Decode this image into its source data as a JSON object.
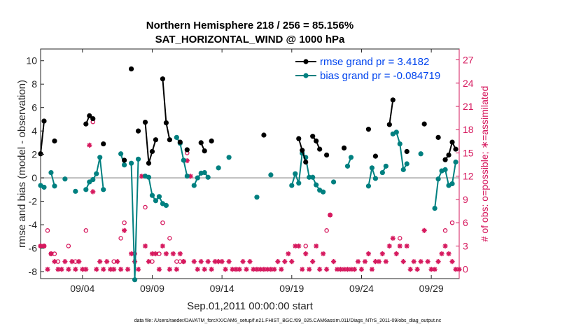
{
  "chart_data": {
    "type": "line",
    "title": "Northern Hemisphere 218 / 256 = 85.156%",
    "subtitle": "SAT_HORIZONTAL_WIND @ 1000 hPa",
    "xlabel": "Sep.01,2011 00:00:00 start",
    "ylabel": "rmse and bias (model - observation)",
    "y2label": "# of obs: o=possible; ∗=assimilated",
    "xlim": [
      0.5,
      30.5
    ],
    "ylim": [
      -8.6,
      11
    ],
    "y2lim": [
      -1.2,
      28.4
    ],
    "x_ticks": [
      3.5,
      8.5,
      13.5,
      18.5,
      23.5,
      28.5
    ],
    "x_tick_labels": [
      "09/04",
      "09/09",
      "09/14",
      "09/19",
      "09/24",
      "09/29"
    ],
    "y_ticks": [
      -8,
      -6,
      -4,
      -2,
      0,
      2,
      4,
      6,
      8,
      10
    ],
    "y_tick_labels": [
      "-8",
      "-6",
      "-4",
      "-2",
      "0",
      "2",
      "4",
      "6",
      "8",
      "10"
    ],
    "y2_ticks": [
      0,
      3,
      6,
      9,
      12,
      15,
      18,
      21,
      24,
      27
    ],
    "y2_tick_labels": [
      "0",
      "3",
      "6",
      "9",
      "12",
      "15",
      "18",
      "21",
      "24",
      "27"
    ],
    "colors": {
      "rmse": "#000000",
      "bias": "#008080",
      "obs": "#d6195e",
      "zero_line": "#bdbdbd",
      "legend_text": "#0044ee"
    },
    "series": [
      {
        "name": "rmse grand pr = 3.4182",
        "color": "#000000",
        "segments": [
          [
            [
              0.5,
              2.05
            ],
            [
              0.75,
              4.85
            ]
          ],
          [
            [
              1.5,
              3.15
            ]
          ],
          [
            [
              3.75,
              4.6
            ],
            [
              4.0,
              5.3
            ],
            [
              4.25,
              5.05
            ]
          ],
          [
            [
              5.0,
              2.9
            ]
          ],
          [
            [
              6.5,
              1.5
            ]
          ],
          [
            [
              7.0,
              9.3
            ]
          ],
          [
            [
              7.5,
              4.0
            ]
          ],
          [
            [
              8.0,
              4.75
            ],
            [
              8.25,
              1.25
            ],
            [
              8.5,
              2.25
            ],
            [
              8.75,
              3.25
            ]
          ],
          [
            [
              9.25,
              8.45
            ],
            [
              9.5,
              4.7
            ],
            [
              9.75,
              3.25
            ]
          ],
          [
            [
              10.5,
              3.05
            ]
          ],
          [
            [
              11.0,
              2.4
            ]
          ],
          [
            [
              12.0,
              3.0
            ],
            [
              12.25,
              2.3
            ]
          ],
          [
            [
              12.75,
              3.15
            ]
          ],
          [
            [
              16.5,
              3.65
            ]
          ],
          [
            [
              19.0,
              3.35
            ],
            [
              19.25,
              2.35
            ],
            [
              19.5,
              1.35
            ]
          ],
          [
            [
              20.0,
              3.55
            ],
            [
              20.25,
              3.15
            ],
            [
              20.5,
              2.45
            ]
          ],
          [
            [
              21.0,
              1.95
            ]
          ],
          [
            [
              22.25,
              2.55
            ]
          ],
          [
            [
              24.0,
              4.15
            ]
          ],
          [
            [
              24.5,
              1.85
            ]
          ],
          [
            [
              25.5,
              4.55
            ],
            [
              25.75,
              6.65
            ]
          ],
          [
            [
              26.75,
              2.25
            ]
          ],
          [
            [
              28.0,
              4.6
            ]
          ],
          [
            [
              29.0,
              3.45
            ]
          ],
          [
            [
              29.5,
              1.55
            ],
            [
              29.75,
              1.95
            ],
            [
              30.0,
              3.05
            ],
            [
              30.25,
              2.45
            ]
          ]
        ]
      },
      {
        "name": "bias grand pr = -0.084719",
        "color": "#008080",
        "segments": [
          [
            [
              0.5,
              -0.65
            ],
            [
              0.75,
              -0.8
            ]
          ],
          [
            [
              1.25,
              0.45
            ],
            [
              1.5,
              -0.7
            ]
          ],
          [
            [
              2.25,
              -0.1
            ]
          ],
          [
            [
              3.0,
              -1.15
            ]
          ],
          [
            [
              3.75,
              -1.0
            ],
            [
              4.0,
              -0.35
            ],
            [
              4.25,
              -0.15
            ],
            [
              4.5,
              0.35
            ],
            [
              4.75,
              1.75
            ],
            [
              5.0,
              -1.0
            ]
          ],
          [
            [
              6.25,
              2.05
            ],
            [
              6.5,
              1.1
            ]
          ],
          [
            [
              7.0,
              1.25
            ],
            [
              7.25,
              -8.7
            ],
            [
              7.5,
              1.6
            ]
          ],
          [
            [
              8.0,
              0.15
            ],
            [
              8.25,
              0.05
            ],
            [
              8.5,
              -1.5
            ],
            [
              8.75,
              -1.95
            ],
            [
              9.0,
              -1.6
            ],
            [
              9.25,
              -2.2
            ],
            [
              9.5,
              -2.35
            ]
          ],
          [
            [
              10.25,
              3.45
            ],
            [
              10.5,
              2.95
            ],
            [
              10.75,
              1.5
            ],
            [
              11.0,
              0.15
            ]
          ],
          [
            [
              11.5,
              -0.65
            ],
            [
              11.75,
              0.0
            ],
            [
              12.0,
              0.4
            ],
            [
              12.25,
              0.45
            ],
            [
              12.5,
              0.05
            ]
          ],
          [
            [
              13.25,
              0.85
            ]
          ],
          [
            [
              14.0,
              1.75
            ]
          ],
          [
            [
              16.0,
              -1.65
            ]
          ],
          [
            [
              17.0,
              0.25
            ]
          ],
          [
            [
              18.5,
              -0.65
            ],
            [
              18.75,
              0.35
            ],
            [
              19.0,
              -0.45
            ],
            [
              19.25,
              2.1
            ],
            [
              19.5,
              1.75
            ],
            [
              19.75,
              0.05
            ],
            [
              20.0,
              0.05
            ],
            [
              20.25,
              -0.6
            ],
            [
              20.5,
              -1.05
            ],
            [
              20.75,
              -1.2
            ]
          ],
          [
            [
              21.5,
              -0.35
            ]
          ],
          [
            [
              22.5,
              1.0
            ],
            [
              22.75,
              1.75
            ]
          ],
          [
            [
              24.0,
              -0.7
            ],
            [
              24.25,
              0.85
            ],
            [
              24.5,
              -0.05
            ]
          ],
          [
            [
              25.0,
              0.45
            ],
            [
              25.25,
              1.0
            ]
          ],
          [
            [
              25.75,
              3.75
            ],
            [
              26.0,
              3.9
            ],
            [
              26.25,
              2.9
            ],
            [
              26.5,
              0.7
            ],
            [
              26.75,
              1.2
            ]
          ],
          [
            [
              27.75,
              2.05
            ]
          ],
          [
            [
              28.75,
              -2.6
            ],
            [
              29.0,
              -0.1
            ],
            [
              29.25,
              0.6
            ],
            [
              29.5,
              0.7
            ],
            [
              29.75,
              -0.65
            ],
            [
              30.0,
              -0.5
            ],
            [
              30.25,
              1.35
            ]
          ]
        ]
      }
    ],
    "obs_possible": [
      [
        0.5,
        3
      ],
      [
        0.75,
        3
      ],
      [
        1.0,
        5
      ],
      [
        1.25,
        2
      ],
      [
        1.5,
        2
      ],
      [
        1.75,
        1
      ],
      [
        2.5,
        3
      ],
      [
        3.0,
        1
      ],
      [
        3.75,
        5
      ],
      [
        4.25,
        19
      ],
      [
        5.75,
        1
      ],
      [
        6.25,
        4
      ],
      [
        6.5,
        6
      ],
      [
        7.25,
        2
      ],
      [
        8.0,
        8
      ],
      [
        8.5,
        1
      ],
      [
        9.0,
        2
      ],
      [
        9.25,
        6
      ],
      [
        9.75,
        4
      ],
      [
        10.25,
        1
      ],
      [
        10.5,
        1
      ],
      [
        10.75,
        1
      ],
      [
        11.0,
        15
      ],
      [
        19.5,
        3
      ],
      [
        21.0,
        5
      ],
      [
        21.25,
        7
      ],
      [
        26.25,
        4
      ],
      [
        29.5,
        5
      ],
      [
        30.0,
        6
      ]
    ],
    "obs_assimilated": [
      [
        0.5,
        3
      ],
      [
        0.75,
        3
      ],
      [
        1.0,
        0
      ],
      [
        1.25,
        2
      ],
      [
        1.5,
        1
      ],
      [
        1.75,
        0
      ],
      [
        2.0,
        0
      ],
      [
        2.25,
        1
      ],
      [
        2.5,
        0
      ],
      [
        2.75,
        1
      ],
      [
        3.0,
        0
      ],
      [
        3.25,
        1
      ],
      [
        3.5,
        0
      ],
      [
        3.75,
        0
      ],
      [
        4.0,
        16
      ],
      [
        4.25,
        10
      ],
      [
        4.5,
        0
      ],
      [
        4.75,
        1
      ],
      [
        5.0,
        0
      ],
      [
        5.25,
        1
      ],
      [
        5.5,
        0
      ],
      [
        5.75,
        0
      ],
      [
        6.0,
        1
      ],
      [
        6.25,
        0
      ],
      [
        6.5,
        5
      ],
      [
        6.75,
        0
      ],
      [
        7.0,
        2
      ],
      [
        7.25,
        1
      ],
      [
        7.5,
        0
      ],
      [
        7.75,
        12
      ],
      [
        8.0,
        3
      ],
      [
        8.25,
        1
      ],
      [
        8.5,
        2
      ],
      [
        8.75,
        2
      ],
      [
        9.0,
        0
      ],
      [
        9.25,
        3
      ],
      [
        9.5,
        2
      ],
      [
        9.75,
        0
      ],
      [
        10.0,
        2
      ],
      [
        10.25,
        0
      ],
      [
        10.5,
        2
      ],
      [
        10.75,
        1
      ],
      [
        11.0,
        14
      ],
      [
        11.25,
        12
      ],
      [
        11.5,
        1
      ],
      [
        11.75,
        0
      ],
      [
        12.0,
        1
      ],
      [
        12.25,
        0
      ],
      [
        12.5,
        1
      ],
      [
        12.75,
        0
      ],
      [
        13.0,
        1
      ],
      [
        13.25,
        1
      ],
      [
        13.5,
        1
      ],
      [
        13.75,
        0
      ],
      [
        14.0,
        1
      ],
      [
        14.25,
        0
      ],
      [
        14.5,
        0
      ],
      [
        14.75,
        0
      ],
      [
        15.0,
        1
      ],
      [
        15.25,
        0
      ],
      [
        15.5,
        1
      ],
      [
        15.75,
        0
      ],
      [
        16.0,
        0
      ],
      [
        16.25,
        0
      ],
      [
        16.5,
        0
      ],
      [
        16.75,
        0
      ],
      [
        17.0,
        0
      ],
      [
        17.25,
        0
      ],
      [
        17.5,
        1
      ],
      [
        17.75,
        0
      ],
      [
        18.0,
        1
      ],
      [
        18.25,
        2
      ],
      [
        18.5,
        1
      ],
      [
        18.75,
        3
      ],
      [
        19.0,
        3
      ],
      [
        19.25,
        0
      ],
      [
        19.5,
        2
      ],
      [
        19.75,
        0
      ],
      [
        20.0,
        1
      ],
      [
        20.25,
        3
      ],
      [
        20.5,
        0
      ],
      [
        20.75,
        2
      ],
      [
        21.0,
        0
      ],
      [
        21.25,
        7
      ],
      [
        21.5,
        1
      ],
      [
        21.75,
        0
      ],
      [
        22.0,
        0
      ],
      [
        22.25,
        0
      ],
      [
        22.5,
        0
      ],
      [
        22.75,
        0
      ],
      [
        23.0,
        0
      ],
      [
        23.25,
        1
      ],
      [
        23.5,
        0
      ],
      [
        23.75,
        1
      ],
      [
        24.0,
        2
      ],
      [
        24.25,
        0
      ],
      [
        24.5,
        1
      ],
      [
        24.75,
        1
      ],
      [
        25.0,
        2
      ],
      [
        25.25,
        1
      ],
      [
        25.5,
        3
      ],
      [
        25.75,
        4
      ],
      [
        26.0,
        2
      ],
      [
        26.25,
        3
      ],
      [
        26.5,
        1
      ],
      [
        26.75,
        3
      ],
      [
        27.0,
        0
      ],
      [
        27.25,
        1
      ],
      [
        27.5,
        0
      ],
      [
        27.75,
        1
      ],
      [
        28.0,
        5
      ],
      [
        28.25,
        1
      ],
      [
        28.5,
        0
      ],
      [
        28.75,
        0
      ],
      [
        29.0,
        1
      ],
      [
        29.25,
        2
      ],
      [
        29.5,
        3
      ],
      [
        29.75,
        2
      ],
      [
        30.0,
        1
      ],
      [
        30.25,
        0
      ],
      [
        30.5,
        0
      ]
    ],
    "legend_position": "top-right",
    "grid": false
  },
  "footnote": "data file: /Users/raeder/DAI/ATM_forcXX/CAM6_setup/f.e21.FHIST_BGC.f09_025.CAM6assim.011/Diags_NTrS_2011-09/obs_diag_output.nc"
}
